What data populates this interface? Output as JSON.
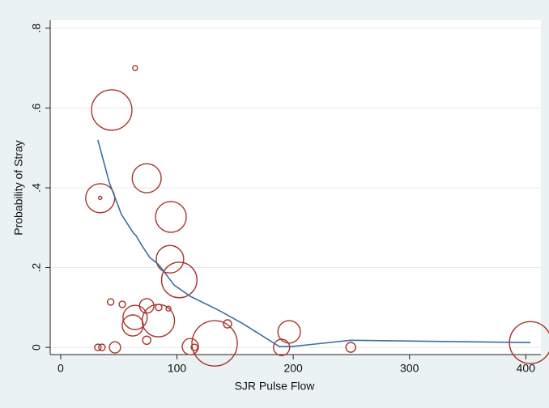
{
  "chart_data": {
    "type": "scatter",
    "x_label": "SJR Pulse Flow",
    "y_label": "Probability of Stray",
    "xlim": [
      -9,
      413
    ],
    "ylim": [
      -0.018,
      0.82
    ],
    "xticks": [
      0,
      100,
      200,
      300,
      400
    ],
    "yticks": [
      0,
      {
        "value": 0.2,
        "label": ".2"
      },
      {
        "value": 0.4,
        "label": ".4"
      },
      {
        "value": 0.6,
        "label": ".6"
      },
      {
        "value": 0.8,
        "label": ".8"
      }
    ],
    "grid": true,
    "points": {
      "color": "#a8342c",
      "x": [
        43.9,
        64,
        34,
        34,
        74,
        94.8,
        94,
        102,
        43,
        53,
        74,
        64,
        62,
        84,
        84.3,
        92.7,
        74,
        143.5,
        132.4,
        111.5,
        115,
        32,
        35.5,
        46.7,
        196.5,
        190,
        249.5,
        404
      ],
      "y": [
        0.595,
        0.7,
        0.374,
        0.375,
        0.424,
        0.327,
        0.221,
        0.169,
        0.114,
        0.108,
        0.104,
        0.075,
        0.055,
        0.067,
        0.1,
        0.097,
        0.018,
        0.059,
        0.01,
        0.002,
        0,
        0,
        0,
        0,
        0.039,
        0,
        0,
        0.012
      ],
      "size": [
        39,
        0.56,
        20,
        0.25,
        20,
        22.6,
        18,
        30,
        1,
        1,
        5,
        14,
        10.6,
        25,
        1,
        0.56,
        1.6,
        1.6,
        49,
        6.25,
        1,
        1,
        1,
        3,
        12,
        6.25,
        2.25,
        42
      ]
    },
    "fit": {
      "color": "#3b6ea3",
      "x": [
        32,
        41.8,
        52.3,
        62.7,
        64.8,
        69.7,
        76.7,
        83.6,
        87,
        97.6,
        111.5,
        136,
        157,
        188,
        198.6,
        249.5,
        404
      ],
      "y": [
        0.52,
        0.414,
        0.333,
        0.286,
        0.28,
        0.256,
        0.225,
        0.209,
        0.197,
        0.156,
        0.128,
        0.093,
        0.059,
        0.002,
        0.002,
        0.018,
        0.012
      ]
    }
  }
}
